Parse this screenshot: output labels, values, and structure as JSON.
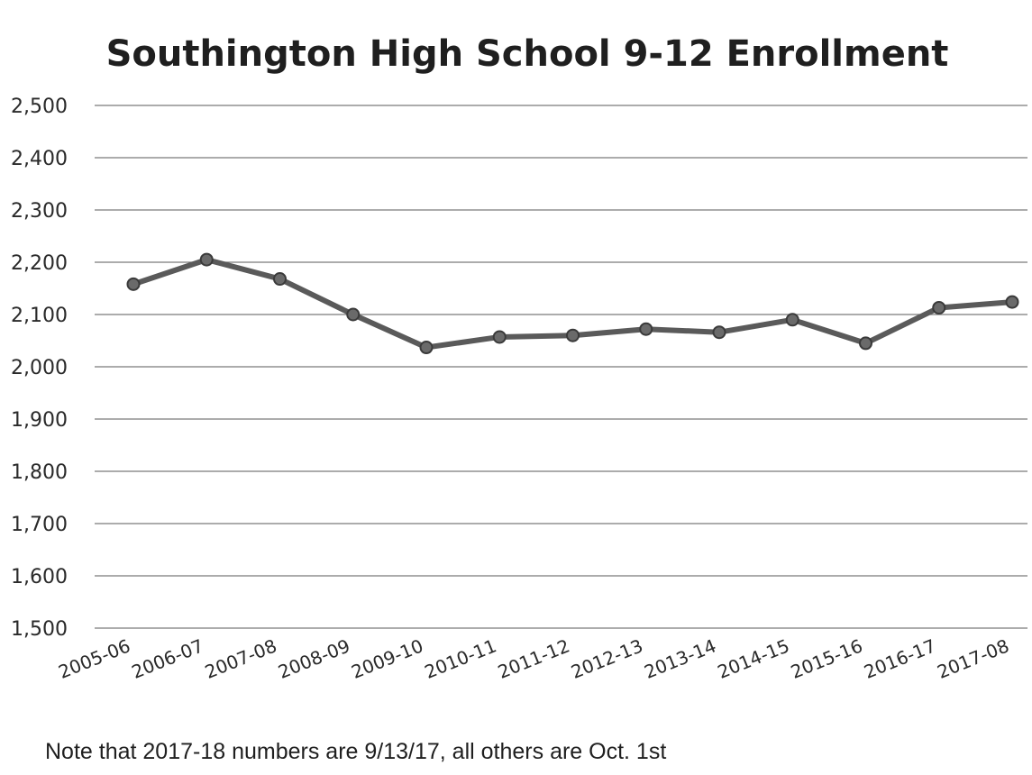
{
  "chart_data": {
    "type": "line",
    "title": "Southington High School 9-12 Enrollment",
    "categories": [
      "2005-06",
      "2006-07",
      "2007-08",
      "2008-09",
      "2009-10",
      "2010-11",
      "2011-12",
      "2012-13",
      "2013-14",
      "2014-15",
      "2015-16",
      "2016-17",
      "2017-08"
    ],
    "series": [
      {
        "values": [
          2158,
          2205,
          2168,
          2100,
          2037,
          2057,
          2060,
          2072,
          2066,
          2090,
          2045,
          2113,
          2124
        ]
      }
    ],
    "ylim": [
      1500,
      2500
    ],
    "yticks": [
      "1,500",
      "1,600",
      "1,700",
      "1,800",
      "1,900",
      "2,000",
      "2,100",
      "2,200",
      "2,300",
      "2,400",
      "2,500"
    ],
    "ytick_values": [
      1500,
      1600,
      1700,
      1800,
      1900,
      2000,
      2100,
      2200,
      2300,
      2400,
      2500
    ],
    "grid": true,
    "legend": "none",
    "line_color": "#5a5a5a",
    "note": "Note that 2017-18 numbers are 9/13/17, all others are Oct. 1st"
  }
}
